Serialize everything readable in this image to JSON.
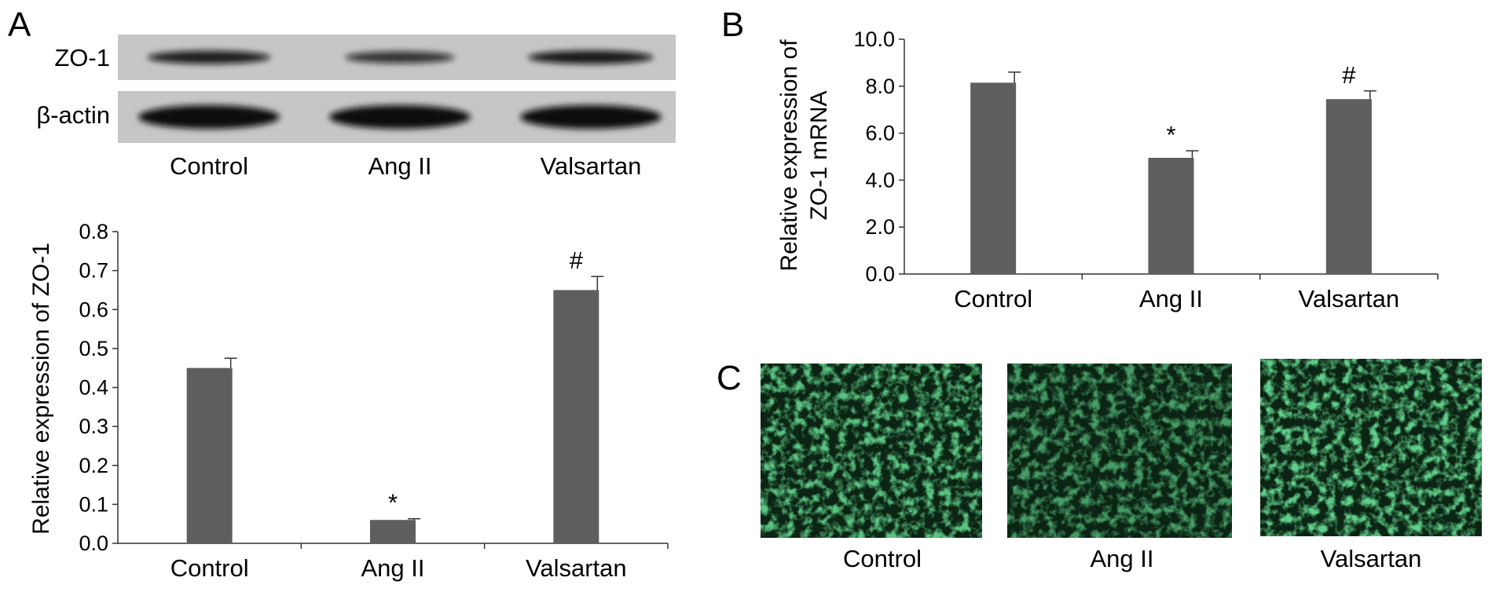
{
  "panels": {
    "A": {
      "letter": "A",
      "blot": {
        "lanes": [
          "Control",
          "Ang II",
          "Valsartan"
        ],
        "rows": [
          {
            "label": "ZO-1",
            "band_strength": [
              0.8,
              0.55,
              0.85
            ]
          },
          {
            "label": "β-actin",
            "band_strength": [
              1.0,
              1.0,
              1.0
            ]
          }
        ]
      }
    },
    "B": {
      "letter": "B"
    },
    "C": {
      "letter": "C",
      "images": [
        {
          "label": "Control",
          "signal": 0.8
        },
        {
          "label": "Ang II",
          "signal": 0.6
        },
        {
          "label": "Valsartan",
          "signal": 0.85
        }
      ],
      "stain_color": "#2ee06a"
    }
  },
  "colors": {
    "bar": "#5e5e5e",
    "axis": "#333333",
    "blot_bg": "#c6c6c6",
    "band": "#111111",
    "micro_bg": "#0b2413"
  },
  "chart_data": [
    {
      "panel": "A",
      "type": "bar",
      "categories": [
        "Control",
        "Ang II",
        "Valsartan"
      ],
      "values": [
        0.45,
        0.06,
        0.65
      ],
      "errors": [
        0.025,
        0.003,
        0.035
      ],
      "annotations": [
        "",
        "*",
        "#"
      ],
      "ylabel": "Relative expression of ZO-1",
      "xlabel": "",
      "ylim": [
        0,
        0.8
      ],
      "yticks": [
        "0.0",
        "0.1",
        "0.2",
        "0.3",
        "0.4",
        "0.5",
        "0.6",
        "0.7",
        "0.8"
      ]
    },
    {
      "panel": "B",
      "type": "bar",
      "categories": [
        "Control",
        "Ang II",
        "Valsartan"
      ],
      "values": [
        8.15,
        4.95,
        7.45
      ],
      "errors": [
        0.45,
        0.3,
        0.35
      ],
      "annotations": [
        "",
        "*",
        "#"
      ],
      "ylabel": "Relative expression of ZO-1 mRNA",
      "xlabel": "",
      "ylim": [
        0,
        10
      ],
      "yticks": [
        "0.0",
        "2.0",
        "4.0",
        "6.0",
        "8.0",
        "10.0"
      ]
    }
  ]
}
